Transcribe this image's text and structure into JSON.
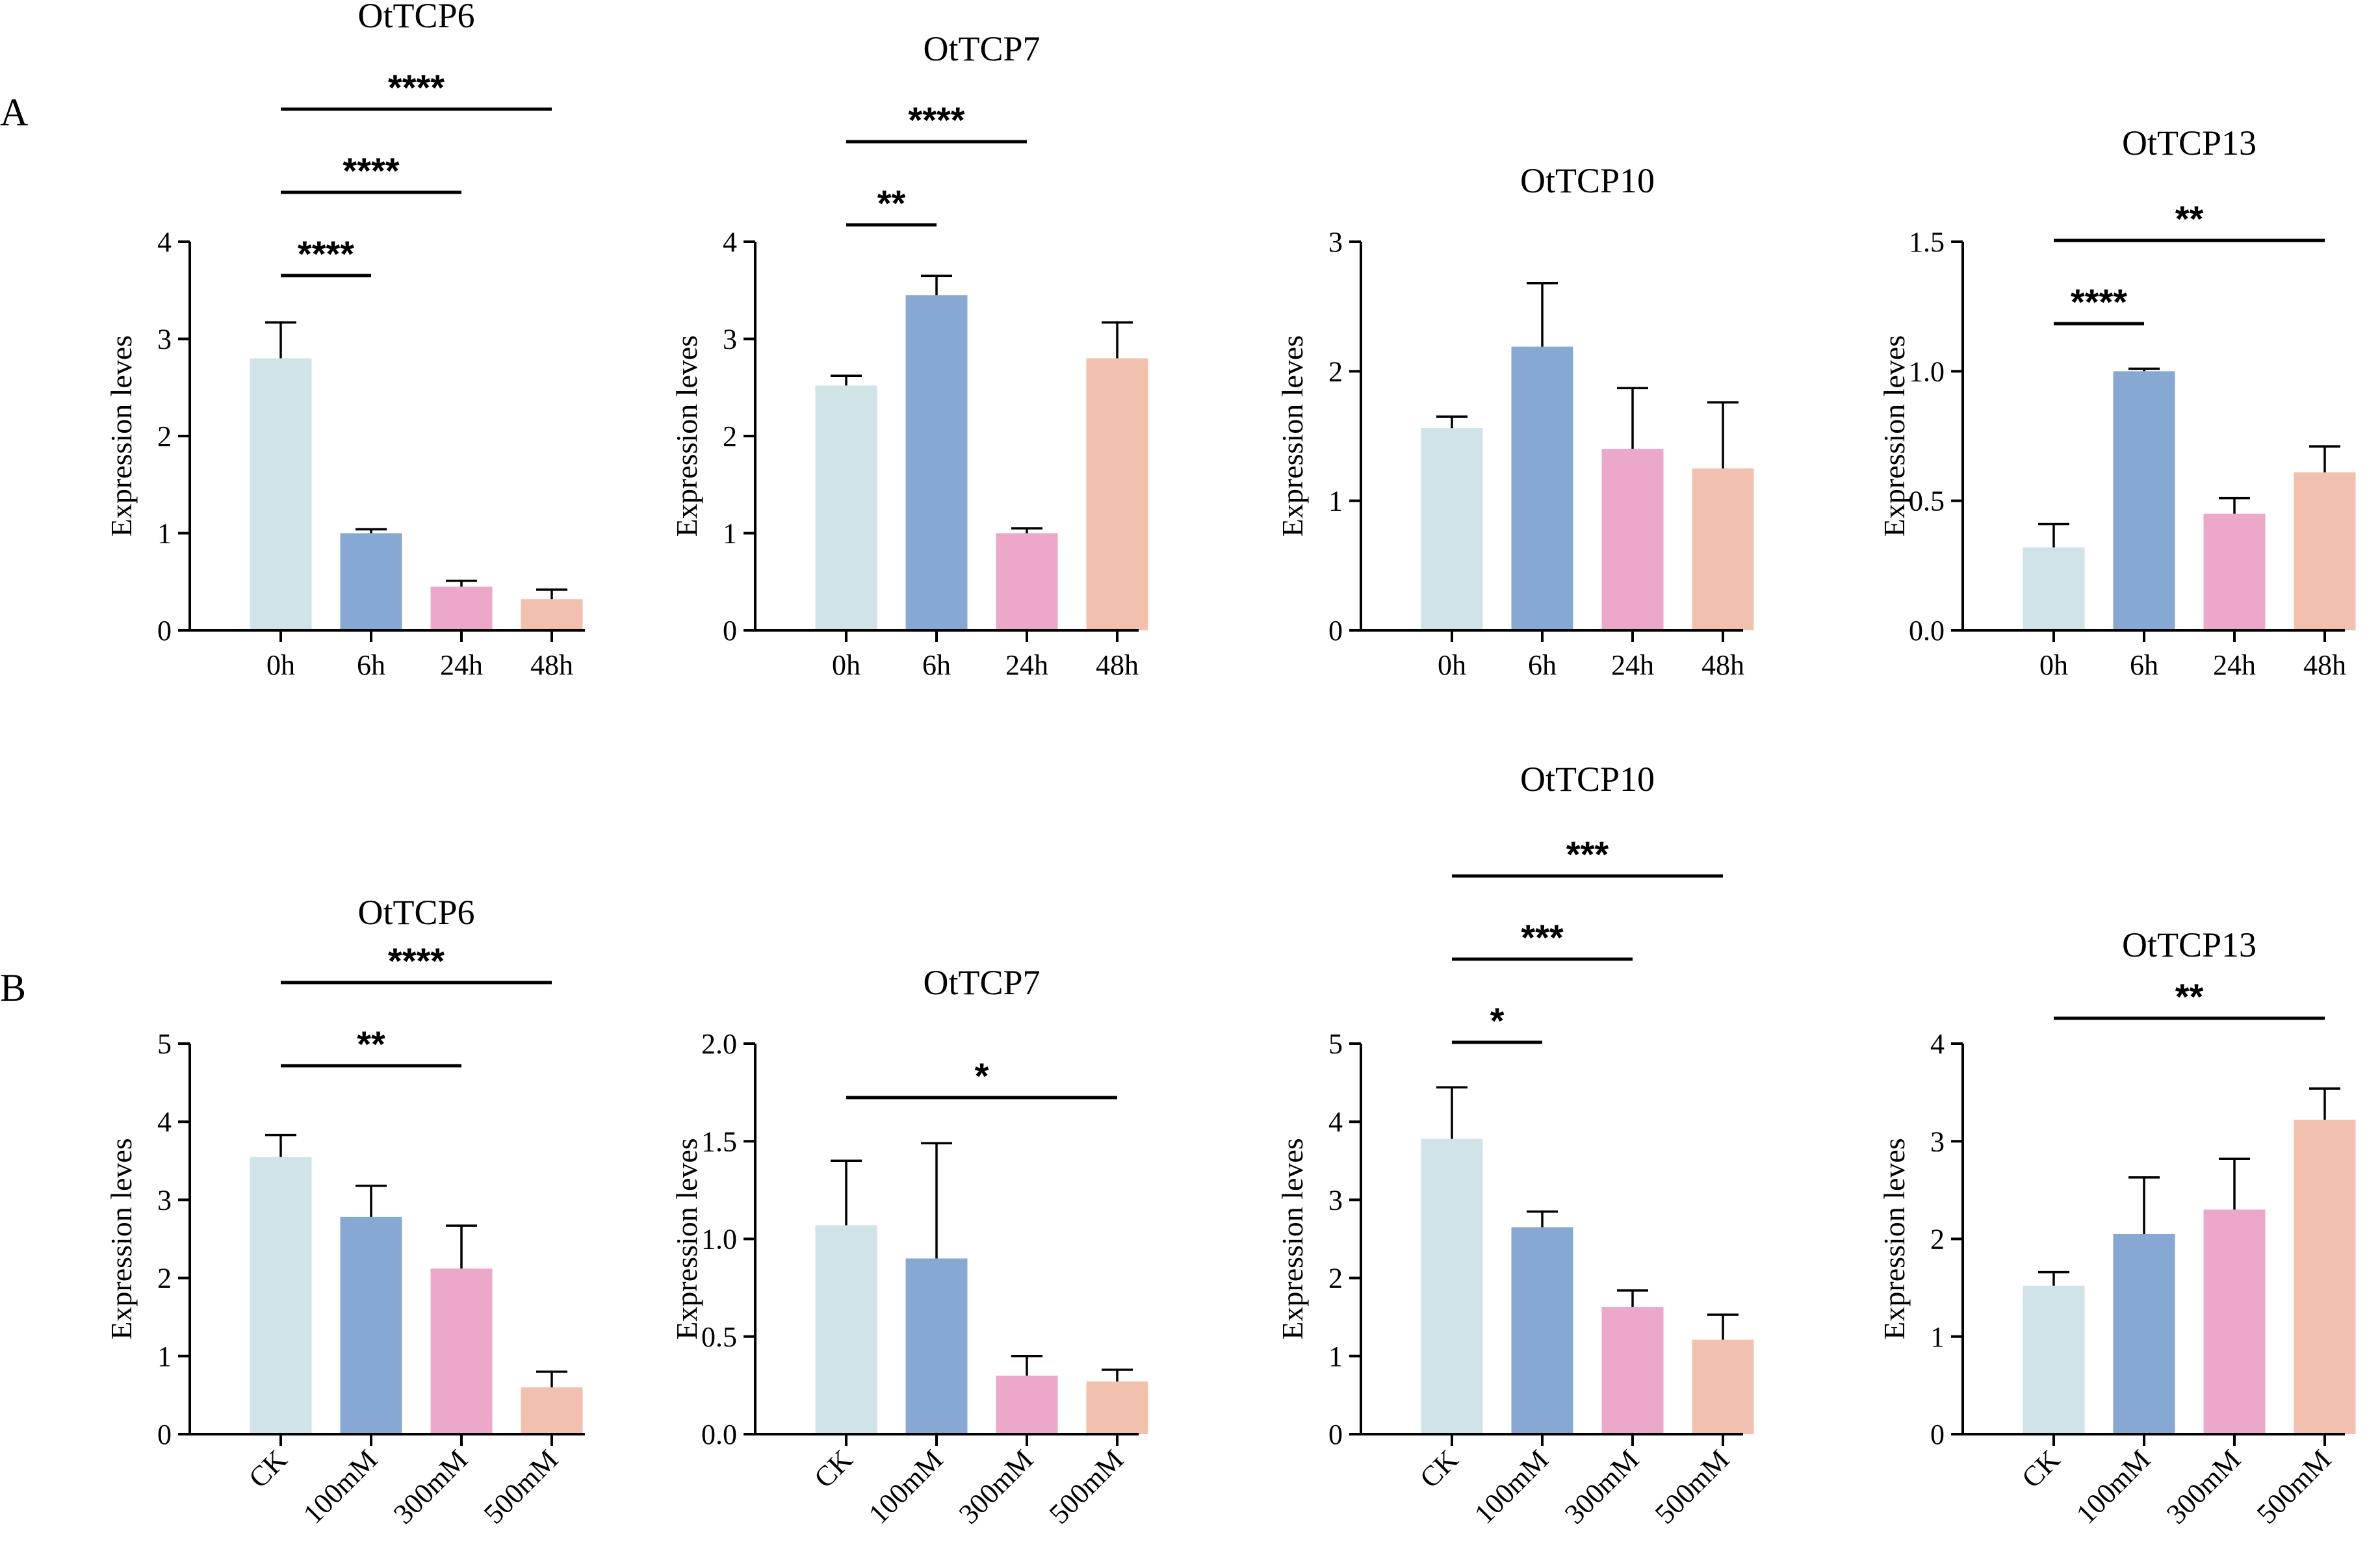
{
  "panels": [
    {
      "label": "A",
      "charts": [
        0,
        1,
        2,
        3
      ]
    },
    {
      "label": "B",
      "charts": [
        4,
        5,
        6,
        7
      ]
    }
  ],
  "colors": [
    "#d0e3e7",
    "#87a8d3",
    "#eba8c9",
    "#f2c0ae"
  ],
  "chart_data": [
    {
      "type": "bar",
      "title": "OtTCP6",
      "ylabel": "Expression leves",
      "categories": [
        "0h",
        "6h",
        "24h",
        "48h"
      ],
      "values": [
        2.8,
        1.0,
        0.45,
        0.32
      ],
      "errors": [
        0.37,
        0.04,
        0.06,
        0.1
      ],
      "ylim": [
        0,
        4
      ],
      "yticks": [
        0,
        1,
        2,
        3,
        4
      ],
      "ytick_labels": [
        "0",
        "1",
        "2",
        "3",
        "4"
      ],
      "rotate_x": false,
      "significance": [
        {
          "from": 0,
          "to": 1,
          "label": "****"
        },
        {
          "from": 0,
          "to": 2,
          "label": "****"
        },
        {
          "from": 0,
          "to": 3,
          "label": "****"
        }
      ]
    },
    {
      "type": "bar",
      "title": "OtTCP7",
      "ylabel": "Expression leves",
      "categories": [
        "0h",
        "6h",
        "24h",
        "48h"
      ],
      "values": [
        2.52,
        3.45,
        1.0,
        2.8
      ],
      "errors": [
        0.1,
        0.2,
        0.05,
        0.37
      ],
      "ylim": [
        0,
        4
      ],
      "yticks": [
        0,
        1,
        2,
        3,
        4
      ],
      "ytick_labels": [
        "0",
        "1",
        "2",
        "3",
        "4"
      ],
      "rotate_x": false,
      "significance": [
        {
          "from": 0,
          "to": 1,
          "label": "**"
        },
        {
          "from": 0,
          "to": 2,
          "label": "****"
        }
      ]
    },
    {
      "type": "bar",
      "title": "OtTCP10",
      "ylabel": "Expression leves",
      "categories": [
        "0h",
        "6h",
        "24h",
        "48h"
      ],
      "values": [
        1.56,
        2.19,
        1.4,
        1.25
      ],
      "errors": [
        0.09,
        0.49,
        0.47,
        0.51
      ],
      "ylim": [
        0,
        3
      ],
      "yticks": [
        0,
        1,
        2,
        3
      ],
      "ytick_labels": [
        "0",
        "1",
        "2",
        "3"
      ],
      "rotate_x": false,
      "significance": []
    },
    {
      "type": "bar",
      "title": "OtTCP13",
      "ylabel": "Expression leves",
      "categories": [
        "0h",
        "6h",
        "24h",
        "48h"
      ],
      "values": [
        0.32,
        1.0,
        0.45,
        0.61
      ],
      "errors": [
        0.09,
        0.01,
        0.06,
        0.1
      ],
      "ylim": [
        0,
        1.5
      ],
      "yticks": [
        0,
        0.5,
        1.0,
        1.5
      ],
      "ytick_labels": [
        "0.0",
        "0.5",
        "1.0",
        "1.5"
      ],
      "rotate_x": false,
      "significance": [
        {
          "from": 0,
          "to": 1,
          "label": "****"
        },
        {
          "from": 0,
          "to": 3,
          "label": "**"
        }
      ]
    },
    {
      "type": "bar",
      "title": "OtTCP6",
      "ylabel": "Expression leves",
      "categories": [
        "CK",
        "100mM",
        "300mM",
        "500mM"
      ],
      "values": [
        3.55,
        2.78,
        2.12,
        0.6
      ],
      "errors": [
        0.28,
        0.4,
        0.55,
        0.2
      ],
      "ylim": [
        0,
        5
      ],
      "yticks": [
        0,
        1,
        2,
        3,
        4,
        5
      ],
      "ytick_labels": [
        "0",
        "1",
        "2",
        "3",
        "4",
        "5"
      ],
      "rotate_x": true,
      "significance": [
        {
          "from": 0,
          "to": 2,
          "label": "**"
        },
        {
          "from": 0,
          "to": 3,
          "label": "****"
        }
      ]
    },
    {
      "type": "bar",
      "title": "OtTCP7",
      "ylabel": "Expression leves",
      "categories": [
        "CK",
        "100mM",
        "300mM",
        "500mM"
      ],
      "values": [
        1.07,
        0.9,
        0.3,
        0.27
      ],
      "errors": [
        0.33,
        0.59,
        0.1,
        0.06
      ],
      "ylim": [
        0,
        2.0
      ],
      "yticks": [
        0,
        0.5,
        1.0,
        1.5,
        2.0
      ],
      "ytick_labels": [
        "0.0",
        "0.5",
        "1.0",
        "1.5",
        "2.0"
      ],
      "rotate_x": true,
      "significance": [
        {
          "from": 0,
          "to": 3,
          "label": "*"
        }
      ]
    },
    {
      "type": "bar",
      "title": "OtTCP10",
      "ylabel": "Expression leves",
      "categories": [
        "CK",
        "100mM",
        "300mM",
        "500mM"
      ],
      "values": [
        3.78,
        2.65,
        1.63,
        1.21
      ],
      "errors": [
        0.66,
        0.2,
        0.21,
        0.32
      ],
      "ylim": [
        0,
        5
      ],
      "yticks": [
        0,
        1,
        2,
        3,
        4,
        5
      ],
      "ytick_labels": [
        "0",
        "1",
        "2",
        "3",
        "4",
        "5"
      ],
      "rotate_x": true,
      "significance": [
        {
          "from": 0,
          "to": 1,
          "label": "*"
        },
        {
          "from": 0,
          "to": 2,
          "label": "***"
        },
        {
          "from": 0,
          "to": 3,
          "label": "***"
        }
      ]
    },
    {
      "type": "bar",
      "title": "OtTCP13",
      "ylabel": "Expression leves",
      "categories": [
        "CK",
        "100mM",
        "300mM",
        "500mM"
      ],
      "values": [
        1.52,
        2.05,
        2.3,
        3.22
      ],
      "errors": [
        0.14,
        0.58,
        0.52,
        0.32
      ],
      "ylim": [
        0,
        4
      ],
      "yticks": [
        0,
        1,
        2,
        3,
        4
      ],
      "ytick_labels": [
        "0",
        "1",
        "2",
        "3",
        "4"
      ],
      "rotate_x": true,
      "significance": [
        {
          "from": 0,
          "to": 3,
          "label": "**"
        }
      ]
    }
  ]
}
